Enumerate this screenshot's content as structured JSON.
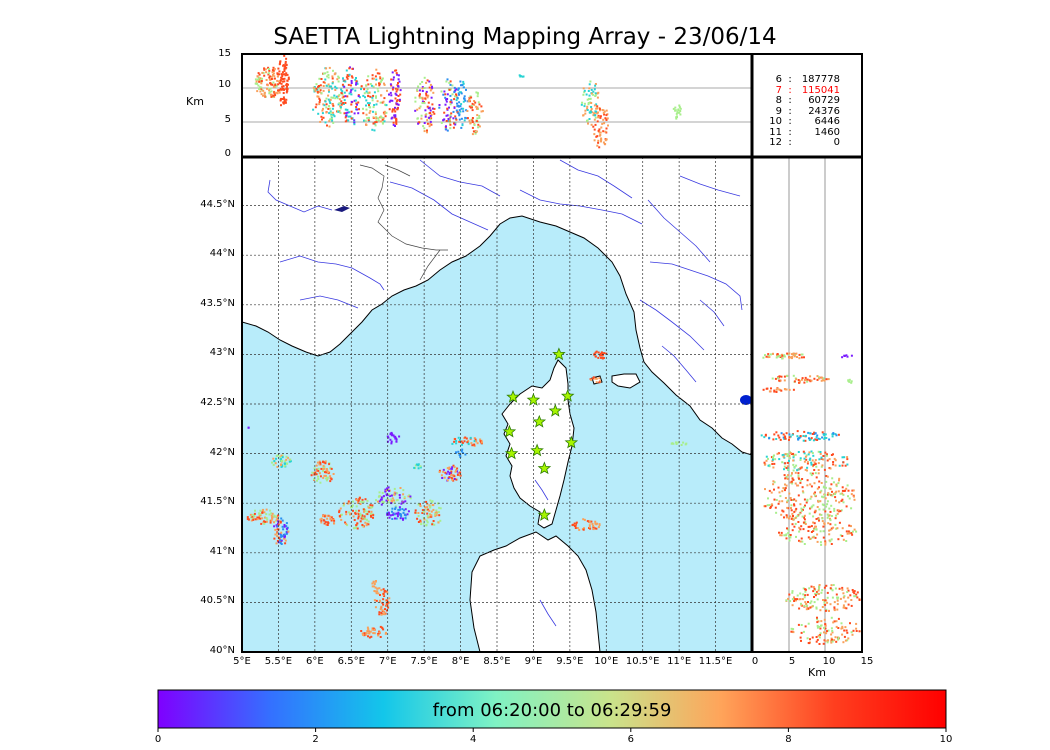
{
  "title": "SAETTA Lightning Mapping Array - 23/06/14",
  "colors": {
    "sea": "#b8ecfa",
    "land": "#ffffff",
    "coast": "#000000",
    "rivers": "#3a3ae0",
    "borders": "#444444",
    "station_fill": "#a6f500",
    "station_stroke": "#2e7d00"
  },
  "top_panel": {
    "ylabel": "Km",
    "yticks": [
      "15",
      "10",
      "5",
      "0"
    ]
  },
  "side_panel": {
    "xlabel": "Km",
    "xticks": [
      "0",
      "5",
      "10",
      "15"
    ]
  },
  "map": {
    "lon_ticks": [
      "5°E",
      "5.5°E",
      "6°E",
      "6.5°E",
      "7°E",
      "7.5°E",
      "8°E",
      "8.5°E",
      "9°E",
      "9.5°E",
      "10°E",
      "10.5°E",
      "11°E",
      "11.5°E"
    ],
    "lat_ticks": [
      "44.5°N",
      "44°N",
      "43.5°N",
      "43°N",
      "42.5°N",
      "42°N",
      "41.5°N",
      "41°N",
      "40.5°N",
      "40°N"
    ],
    "lon_range": [
      5,
      12
    ],
    "lat_range": [
      40,
      45
    ],
    "stations": [
      {
        "lon": 9.35,
        "lat": 43.0
      },
      {
        "lon": 8.72,
        "lat": 42.57
      },
      {
        "lon": 9.0,
        "lat": 42.54
      },
      {
        "lon": 9.47,
        "lat": 42.58
      },
      {
        "lon": 9.3,
        "lat": 42.43
      },
      {
        "lon": 9.08,
        "lat": 42.32
      },
      {
        "lon": 8.67,
        "lat": 42.22
      },
      {
        "lon": 9.52,
        "lat": 42.11
      },
      {
        "lon": 8.7,
        "lat": 42.0
      },
      {
        "lon": 9.05,
        "lat": 42.03
      },
      {
        "lon": 9.15,
        "lat": 41.85
      },
      {
        "lon": 9.15,
        "lat": 41.38
      }
    ]
  },
  "counts": [
    {
      "k": "6",
      "v": "187778",
      "highlight": false
    },
    {
      "k": "7",
      "v": "115041",
      "highlight": true
    },
    {
      "k": "8",
      "v": "60729",
      "highlight": false
    },
    {
      "k": "9",
      "v": "24376",
      "highlight": false
    },
    {
      "k": "10",
      "v": "6446",
      "highlight": false
    },
    {
      "k": "11",
      "v": "1460",
      "highlight": false
    },
    {
      "k": "12",
      "v": "0",
      "highlight": false
    }
  ],
  "colorbar": {
    "label": "from 06:20:00 to 06:29:59",
    "ticks": [
      "0",
      "2",
      "4",
      "6",
      "8",
      "10"
    ],
    "stops": [
      "#7f00ff",
      "#3470ff",
      "#13c6ea",
      "#7ff2c4",
      "#c8e48c",
      "#ffa45a",
      "#ff3f1f",
      "#ff0000"
    ]
  }
}
